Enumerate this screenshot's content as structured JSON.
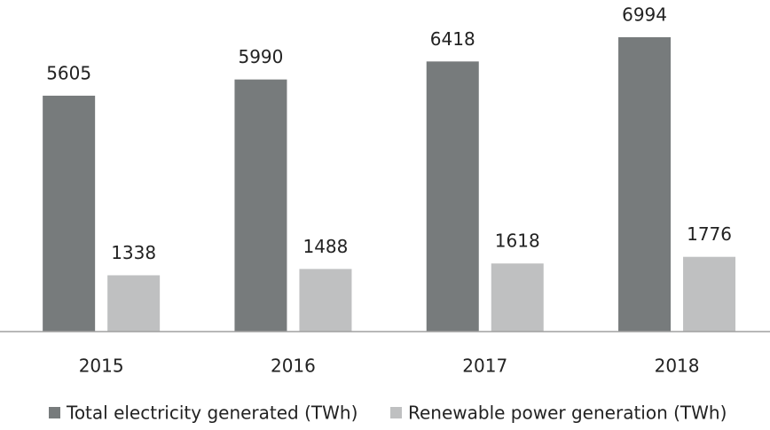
{
  "chart_data": {
    "type": "bar",
    "categories": [
      "2015",
      "2016",
      "2017",
      "2018"
    ],
    "series": [
      {
        "name": "Total electricity generated (TWh)",
        "color": "#777b7c",
        "values": [
          5605,
          5990,
          6418,
          6994
        ]
      },
      {
        "name": "Renewable power generation (TWh)",
        "color": "#bfc0c1",
        "values": [
          1338,
          1488,
          1618,
          1776
        ]
      }
    ],
    "ylim": [
      0,
      7000
    ],
    "legend": "bottom"
  }
}
